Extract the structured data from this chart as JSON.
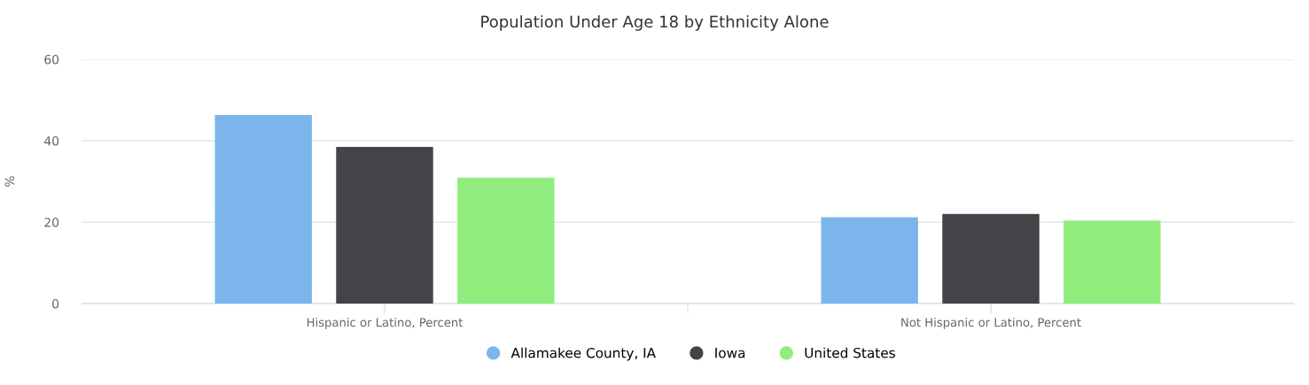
{
  "chart_data": {
    "type": "bar",
    "title": "Population Under Age 18 by Ethnicity Alone",
    "ylabel": "%",
    "categories": [
      "Hispanic or Latino, Percent",
      "Not Hispanic or Latino, Percent"
    ],
    "series": [
      {
        "name": "Allamakee County, IA",
        "color": "#7cb5ec",
        "values": [
          46.3,
          21.2
        ]
      },
      {
        "name": "Iowa",
        "color": "#434348",
        "values": [
          38.5,
          22.0
        ]
      },
      {
        "name": "United States",
        "color": "#90ed7d",
        "values": [
          30.9,
          20.4
        ]
      }
    ],
    "ylim": [
      0,
      60
    ],
    "yticks": [
      0,
      20,
      40,
      60
    ],
    "grid": "y",
    "legend": "bottom"
  }
}
